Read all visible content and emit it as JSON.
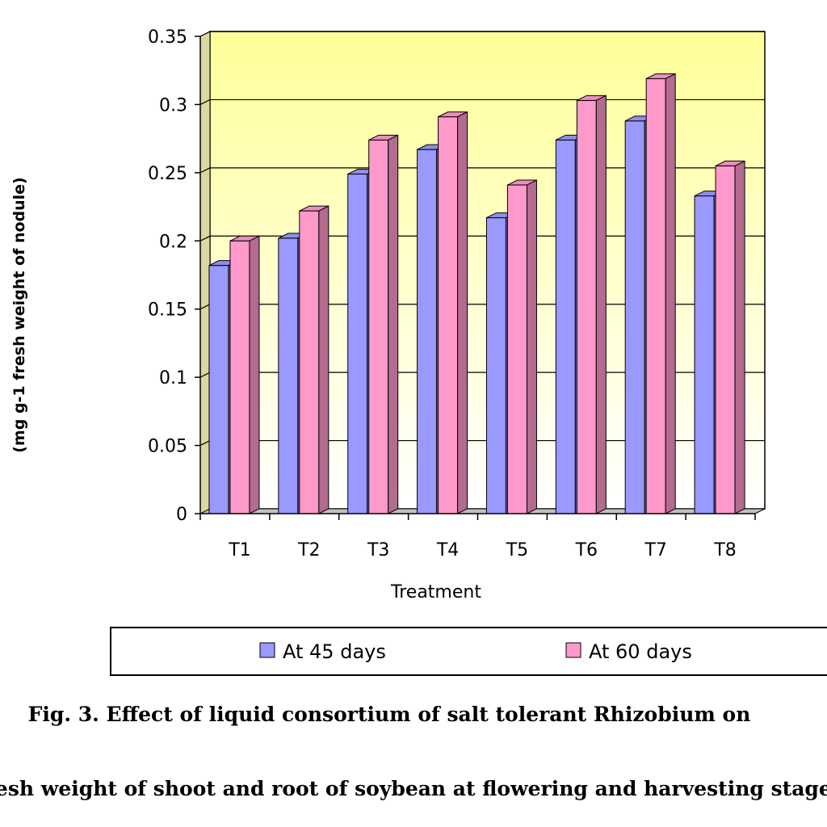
{
  "chart_data": {
    "type": "bar",
    "categories": [
      "T1",
      "T2",
      "T3",
      "T4",
      "T5",
      "T6",
      "T7",
      "T8"
    ],
    "series": [
      {
        "name": "At 45 days",
        "color": "#9999FF",
        "values": [
          0.182,
          0.202,
          0.249,
          0.267,
          0.217,
          0.274,
          0.288,
          0.233
        ]
      },
      {
        "name": "At 60 days",
        "color": "#FF99CC",
        "values": [
          0.2,
          0.222,
          0.274,
          0.291,
          0.241,
          0.303,
          0.319,
          0.255
        ]
      }
    ],
    "yticks": [
      "0",
      "0.05",
      "0.1",
      "0.15",
      "0.2",
      "0.25",
      "0.3",
      "0.35"
    ],
    "ylim": [
      0,
      0.35
    ],
    "xlabel": "Treatment",
    "ylabel": "(mg g-1 fresh weight of nodule)",
    "legend_position": "bottom",
    "grid": true,
    "colors": {
      "background_top": "#FFFF99",
      "background_bottom": "#FFFFFF",
      "grid": "#000000"
    }
  },
  "caption": {
    "line1": "Fig. 3. Effect of liquid consortium of salt tolerant Rhizobium on",
    "line2": "fresh weight of shoot and root of soybean at flowering and harvesting stage"
  }
}
